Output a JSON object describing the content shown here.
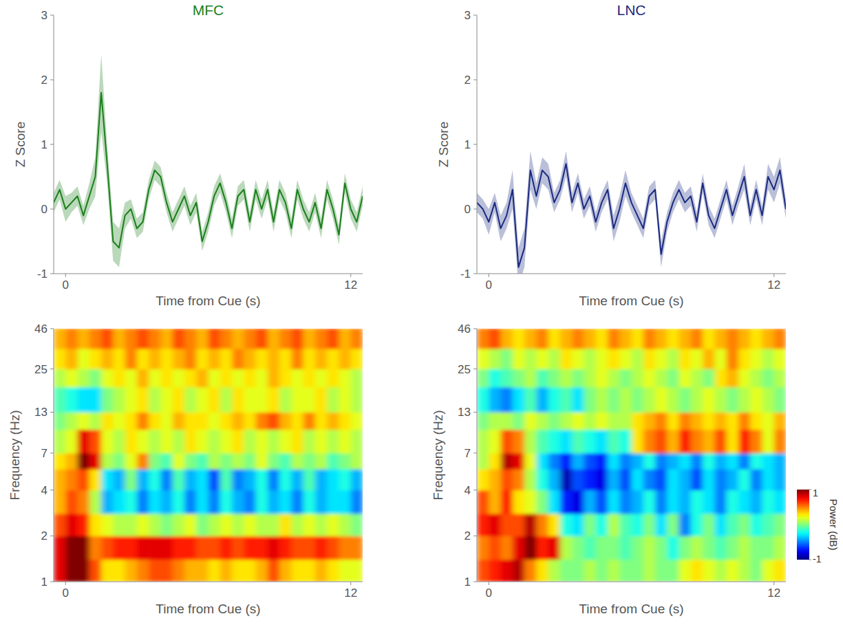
{
  "chart_data": [
    {
      "type": "line",
      "title": "MFC",
      "color": "#1a7f1a",
      "x_label": "Time from Cue (s)",
      "y_label": "Z Score",
      "xlim": [
        -0.5,
        12.5
      ],
      "xticks": [
        0,
        12
      ],
      "ylim": [
        -1,
        3
      ],
      "yticks": [
        -1,
        0,
        1,
        2,
        3
      ],
      "x": [
        -0.5,
        -0.25,
        0,
        0.25,
        0.5,
        0.75,
        1,
        1.25,
        1.5,
        1.75,
        2,
        2.25,
        2.5,
        2.75,
        3,
        3.25,
        3.5,
        3.75,
        4,
        4.25,
        4.5,
        4.75,
        5,
        5.25,
        5.5,
        5.75,
        6,
        6.25,
        6.5,
        6.75,
        7,
        7.25,
        7.5,
        7.75,
        8,
        8.25,
        8.5,
        8.75,
        9,
        9.25,
        9.5,
        9.75,
        10,
        10.25,
        10.5,
        10.75,
        11,
        11.25,
        11.5,
        11.75,
        12,
        12.25,
        12.5
      ],
      "values": [
        0.1,
        0.3,
        0.0,
        0.1,
        0.2,
        -0.1,
        0.2,
        0.5,
        1.8,
        0.7,
        -0.5,
        -0.6,
        -0.1,
        0.0,
        -0.3,
        -0.2,
        0.3,
        0.6,
        0.5,
        0.1,
        -0.2,
        0.0,
        0.2,
        -0.1,
        0.1,
        -0.5,
        -0.2,
        0.2,
        0.4,
        0.1,
        -0.3,
        0.2,
        0.3,
        -0.2,
        0.3,
        0.0,
        0.3,
        -0.2,
        0.3,
        0.1,
        -0.3,
        0.3,
        0.0,
        -0.2,
        0.1,
        -0.3,
        0.3,
        0.0,
        -0.4,
        0.4,
        0.0,
        -0.2,
        0.2
      ],
      "error": [
        0.15,
        0.15,
        0.2,
        0.15,
        0.15,
        0.15,
        0.2,
        0.3,
        0.6,
        0.3,
        0.3,
        0.3,
        0.2,
        0.15,
        0.15,
        0.15,
        0.15,
        0.15,
        0.15,
        0.15,
        0.15,
        0.15,
        0.15,
        0.15,
        0.15,
        0.15,
        0.15,
        0.15,
        0.15,
        0.15,
        0.15,
        0.15,
        0.15,
        0.15,
        0.15,
        0.15,
        0.15,
        0.15,
        0.15,
        0.15,
        0.15,
        0.15,
        0.15,
        0.15,
        0.15,
        0.15,
        0.15,
        0.15,
        0.15,
        0.15,
        0.15,
        0.15,
        0.15
      ]
    },
    {
      "type": "line",
      "title": "LNC",
      "color": "#1b2a80",
      "x_label": "Time from Cue (s)",
      "y_label": "Z Score",
      "xlim": [
        -0.5,
        12.5
      ],
      "xticks": [
        0,
        12
      ],
      "ylim": [
        -1,
        3
      ],
      "yticks": [
        -1,
        0,
        1,
        2,
        3
      ],
      "x": [
        -0.5,
        -0.25,
        0,
        0.25,
        0.5,
        0.75,
        1,
        1.25,
        1.5,
        1.75,
        2,
        2.25,
        2.5,
        2.75,
        3,
        3.25,
        3.5,
        3.75,
        4,
        4.25,
        4.5,
        4.75,
        5,
        5.25,
        5.5,
        5.75,
        6,
        6.25,
        6.5,
        6.75,
        7,
        7.25,
        7.5,
        7.75,
        8,
        8.25,
        8.5,
        8.75,
        9,
        9.25,
        9.5,
        9.75,
        10,
        10.25,
        10.5,
        10.75,
        11,
        11.25,
        11.5,
        11.75,
        12,
        12.25,
        12.5
      ],
      "values": [
        0.1,
        0.0,
        -0.2,
        0.1,
        -0.3,
        -0.1,
        0.3,
        -0.9,
        -0.6,
        0.6,
        0.2,
        0.6,
        0.5,
        0.1,
        0.3,
        0.7,
        0.1,
        0.4,
        0.0,
        0.2,
        -0.2,
        0.1,
        0.3,
        -0.3,
        0.0,
        0.4,
        0.1,
        -0.1,
        -0.3,
        0.2,
        0.3,
        -0.7,
        -0.2,
        0.1,
        0.3,
        0.1,
        0.2,
        -0.2,
        0.4,
        -0.1,
        -0.3,
        0.0,
        0.3,
        -0.1,
        0.2,
        0.5,
        -0.1,
        0.3,
        -0.1,
        0.5,
        0.3,
        0.6,
        0.0
      ],
      "error": [
        0.15,
        0.15,
        0.2,
        0.15,
        0.2,
        0.2,
        0.3,
        0.3,
        0.3,
        0.3,
        0.2,
        0.2,
        0.2,
        0.15,
        0.15,
        0.2,
        0.15,
        0.15,
        0.15,
        0.15,
        0.15,
        0.15,
        0.15,
        0.2,
        0.2,
        0.2,
        0.15,
        0.15,
        0.15,
        0.15,
        0.15,
        0.2,
        0.15,
        0.15,
        0.15,
        0.15,
        0.15,
        0.15,
        0.15,
        0.15,
        0.15,
        0.15,
        0.15,
        0.15,
        0.15,
        0.2,
        0.15,
        0.15,
        0.15,
        0.2,
        0.2,
        0.2,
        0.15
      ]
    },
    {
      "type": "heatmap",
      "x_label": "Time from Cue (s)",
      "y_label": "Frequency (Hz)",
      "log": "y",
      "xlim": [
        -0.5,
        12.5
      ],
      "xticks": [
        0,
        12
      ],
      "ylim": [
        1,
        46
      ],
      "yticks": [
        1,
        2,
        4,
        7,
        13,
        25,
        46
      ],
      "x_edges": [
        -0.5,
        0,
        0.5,
        1,
        1.5,
        2,
        2.5,
        3,
        3.5,
        4,
        4.5,
        5,
        5.5,
        6,
        6.5,
        7,
        7.5,
        8,
        8.5,
        9,
        9.5,
        10,
        10.5,
        11,
        11.5,
        12,
        12.5
      ],
      "y_edges": [
        1,
        1.4,
        2,
        2.8,
        4,
        5.5,
        7,
        10,
        13,
        19,
        25,
        34,
        46
      ],
      "values": [
        [
          0.8,
          1.0,
          1.0,
          0.6,
          0.3,
          0.3,
          0.4,
          0.5,
          0.6,
          0.6,
          0.5,
          0.4,
          0.4,
          0.3,
          0.4,
          0.3,
          0.3,
          0.4,
          0.6,
          0.4,
          0.3,
          0.3,
          0.4,
          0.3,
          0.2,
          0.2
        ],
        [
          0.8,
          1.0,
          1.0,
          0.5,
          0.6,
          0.7,
          0.7,
          0.8,
          0.8,
          0.8,
          0.7,
          0.7,
          0.6,
          0.6,
          0.7,
          0.6,
          0.7,
          0.7,
          0.8,
          0.7,
          0.6,
          0.6,
          0.7,
          0.6,
          0.5,
          0.5
        ],
        [
          0.6,
          0.8,
          0.7,
          0.3,
          0.2,
          0.1,
          0.1,
          0.2,
          0.1,
          0.0,
          0.1,
          0.2,
          0.0,
          0.1,
          0.2,
          0.1,
          0.2,
          0.1,
          0.1,
          0.3,
          0.1,
          0.2,
          0.1,
          0.2,
          0.1,
          0.0
        ],
        [
          0.4,
          0.6,
          0.5,
          0.1,
          -0.4,
          -0.3,
          -0.2,
          -0.5,
          -0.3,
          -0.4,
          -0.2,
          -0.5,
          -0.3,
          -0.5,
          -0.2,
          -0.4,
          -0.5,
          -0.2,
          -0.4,
          -0.3,
          -0.5,
          -0.2,
          -0.4,
          -0.3,
          -0.3,
          -0.5
        ],
        [
          0.4,
          0.5,
          0.6,
          0.3,
          -0.3,
          -0.4,
          0.0,
          -0.4,
          -0.2,
          -0.5,
          -0.1,
          -0.4,
          -0.3,
          -0.6,
          -0.1,
          -0.5,
          -0.4,
          -0.2,
          -0.5,
          -0.2,
          -0.4,
          -0.1,
          -0.4,
          -0.3,
          -0.2,
          -0.4
        ],
        [
          0.3,
          0.4,
          1.0,
          0.8,
          0.1,
          0.0,
          0.2,
          0.5,
          0.0,
          -0.1,
          0.2,
          0.0,
          -0.1,
          0.1,
          0.0,
          0.1,
          0.0,
          0.2,
          0.0,
          -0.1,
          0.1,
          0.0,
          0.1,
          -0.1,
          0.0,
          0.1
        ],
        [
          0.1,
          0.2,
          0.8,
          0.6,
          0.2,
          0.1,
          0.3,
          0.2,
          0.1,
          0.2,
          0.1,
          0.3,
          0.2,
          0.1,
          0.2,
          0.3,
          0.1,
          0.2,
          0.1,
          0.2,
          0.3,
          0.1,
          0.2,
          0.1,
          0.2,
          0.1
        ],
        [
          0.0,
          0.1,
          0.2,
          0.1,
          0.3,
          0.2,
          0.3,
          0.5,
          0.3,
          0.2,
          0.4,
          0.3,
          0.3,
          0.2,
          0.3,
          0.4,
          0.3,
          0.5,
          0.6,
          0.4,
          0.3,
          0.5,
          0.3,
          0.4,
          0.3,
          0.2
        ],
        [
          -0.1,
          -0.2,
          -0.3,
          -0.3,
          0.0,
          0.1,
          0.2,
          0.3,
          0.1,
          0.2,
          0.3,
          0.1,
          0.2,
          0.3,
          0.1,
          0.3,
          0.2,
          0.2,
          0.3,
          0.1,
          0.2,
          0.2,
          0.3,
          0.1,
          0.2,
          0.1
        ],
        [
          0.1,
          0.2,
          0.1,
          0.0,
          0.2,
          0.3,
          0.2,
          0.4,
          0.2,
          0.3,
          0.2,
          0.3,
          0.4,
          0.2,
          0.3,
          0.2,
          0.3,
          0.2,
          0.4,
          0.3,
          0.2,
          0.3,
          0.2,
          0.3,
          0.2,
          0.1
        ],
        [
          0.3,
          0.4,
          0.2,
          0.3,
          0.4,
          0.3,
          0.5,
          0.3,
          0.4,
          0.3,
          0.4,
          0.5,
          0.3,
          0.4,
          0.3,
          0.5,
          0.4,
          0.3,
          0.4,
          0.3,
          0.5,
          0.3,
          0.4,
          0.3,
          0.4,
          0.3
        ],
        [
          0.4,
          0.5,
          0.4,
          0.5,
          0.6,
          0.4,
          0.5,
          0.6,
          0.5,
          0.4,
          0.6,
          0.5,
          0.4,
          0.6,
          0.5,
          0.4,
          0.5,
          0.6,
          0.4,
          0.5,
          0.6,
          0.4,
          0.5,
          0.6,
          0.4,
          0.5
        ]
      ]
    },
    {
      "type": "heatmap",
      "x_label": "Time from Cue (s)",
      "y_label": "Frequency (Hz)",
      "log": "y",
      "xlim": [
        -0.5,
        12.5
      ],
      "xticks": [
        0,
        12
      ],
      "ylim": [
        1,
        46
      ],
      "yticks": [
        1,
        2,
        4,
        7,
        13,
        25,
        46
      ],
      "x_edges": [
        -0.5,
        0,
        0.5,
        1,
        1.5,
        2,
        2.5,
        3,
        3.5,
        4,
        4.5,
        5,
        5.5,
        6,
        6.5,
        7,
        7.5,
        8,
        8.5,
        9,
        9.5,
        10,
        10.5,
        11,
        11.5,
        12,
        12.5
      ],
      "y_edges": [
        1,
        1.4,
        2,
        2.8,
        4,
        5.5,
        7,
        10,
        13,
        19,
        25,
        34,
        46
      ],
      "values": [
        [
          0.6,
          0.7,
          0.8,
          0.9,
          0.5,
          0.3,
          0.1,
          0.0,
          0.0,
          0.1,
          0.0,
          0.1,
          0.0,
          0.0,
          0.1,
          0.0,
          0.0,
          0.2,
          0.3,
          0.2,
          0.1,
          0.2,
          0.1,
          0.0,
          0.2,
          0.3
        ],
        [
          0.5,
          0.6,
          0.5,
          0.8,
          1.0,
          0.7,
          0.8,
          0.1,
          0.0,
          -0.1,
          0.0,
          0.0,
          -0.1,
          0.0,
          0.1,
          0.0,
          -0.2,
          0.0,
          0.1,
          0.0,
          -0.1,
          0.0,
          0.1,
          0.0,
          0.0,
          0.1
        ],
        [
          0.7,
          0.8,
          0.6,
          0.6,
          0.9,
          0.5,
          0.3,
          -0.2,
          -0.3,
          0.0,
          -0.2,
          0.1,
          -0.1,
          -0.2,
          0.0,
          -0.3,
          0.0,
          -0.5,
          -0.2,
          0.0,
          -0.3,
          -0.1,
          0.0,
          -0.2,
          -0.1,
          0.0
        ],
        [
          0.6,
          0.4,
          0.7,
          0.3,
          0.2,
          0.0,
          -0.3,
          -0.7,
          -0.8,
          -0.4,
          -0.6,
          -0.3,
          -0.5,
          -0.4,
          -0.2,
          -0.5,
          -0.3,
          -0.4,
          -0.2,
          -0.3,
          -0.5,
          -0.2,
          -0.3,
          -0.4,
          -0.2,
          -0.3
        ],
        [
          0.3,
          0.4,
          0.6,
          0.5,
          0.1,
          -0.2,
          -0.4,
          -0.9,
          -0.6,
          -0.7,
          -0.8,
          -0.4,
          -0.6,
          -0.3,
          -0.5,
          -0.6,
          -0.3,
          -0.4,
          -0.6,
          -0.3,
          -0.5,
          -0.4,
          -0.2,
          -0.5,
          -0.3,
          -0.4
        ],
        [
          0.1,
          0.3,
          0.9,
          0.8,
          0.2,
          -0.3,
          -0.5,
          -0.7,
          -0.4,
          -0.6,
          -0.7,
          -0.3,
          -0.5,
          -0.4,
          -0.2,
          -0.5,
          -0.4,
          -0.3,
          -0.5,
          -0.2,
          -0.4,
          -0.3,
          -0.5,
          -0.2,
          -0.3,
          -0.4
        ],
        [
          0.1,
          0.2,
          0.6,
          0.5,
          0.1,
          -0.1,
          -0.2,
          -0.3,
          -0.1,
          -0.2,
          -0.3,
          -0.1,
          -0.2,
          0.3,
          0.5,
          0.6,
          0.4,
          0.7,
          0.5,
          0.4,
          0.6,
          0.3,
          0.7,
          0.5,
          0.2,
          0.5
        ],
        [
          0.0,
          0.1,
          0.1,
          0.0,
          0.2,
          0.1,
          0.0,
          0.1,
          0.2,
          0.1,
          0.2,
          0.1,
          0.1,
          0.3,
          0.4,
          0.5,
          0.3,
          0.5,
          0.4,
          0.3,
          0.4,
          0.3,
          0.5,
          0.3,
          0.2,
          0.4
        ],
        [
          -0.2,
          -0.4,
          -0.5,
          -0.3,
          -0.1,
          -0.4,
          -0.2,
          -0.1,
          -0.3,
          0.0,
          0.1,
          0.0,
          0.1,
          0.0,
          0.1,
          0.2,
          0.1,
          0.0,
          0.1,
          0.2,
          0.1,
          0.0,
          0.1,
          0.2,
          0.1,
          0.0
        ],
        [
          0.0,
          -0.2,
          -0.1,
          0.0,
          0.1,
          -0.1,
          0.0,
          0.1,
          0.0,
          0.1,
          0.2,
          0.1,
          0.0,
          0.1,
          0.2,
          0.1,
          0.0,
          0.2,
          0.1,
          0.0,
          0.3,
          0.4,
          0.2,
          0.1,
          0.0,
          0.1
        ],
        [
          0.2,
          0.1,
          0.0,
          0.2,
          0.1,
          0.2,
          0.1,
          0.3,
          0.2,
          0.1,
          0.2,
          0.3,
          0.2,
          0.1,
          0.3,
          0.2,
          0.1,
          0.3,
          0.2,
          0.4,
          0.2,
          0.5,
          0.3,
          0.2,
          0.1,
          0.2
        ],
        [
          0.5,
          0.6,
          0.4,
          0.3,
          0.4,
          0.5,
          0.3,
          0.4,
          0.5,
          0.4,
          0.3,
          0.5,
          0.4,
          0.3,
          0.5,
          0.4,
          0.3,
          0.4,
          0.5,
          0.3,
          0.4,
          0.5,
          0.4,
          0.3,
          0.4,
          0.5
        ]
      ],
      "colorbar": {
        "range": [
          -1,
          1
        ],
        "ticks": [
          -1,
          1
        ],
        "label": "Power (dB)"
      }
    }
  ]
}
